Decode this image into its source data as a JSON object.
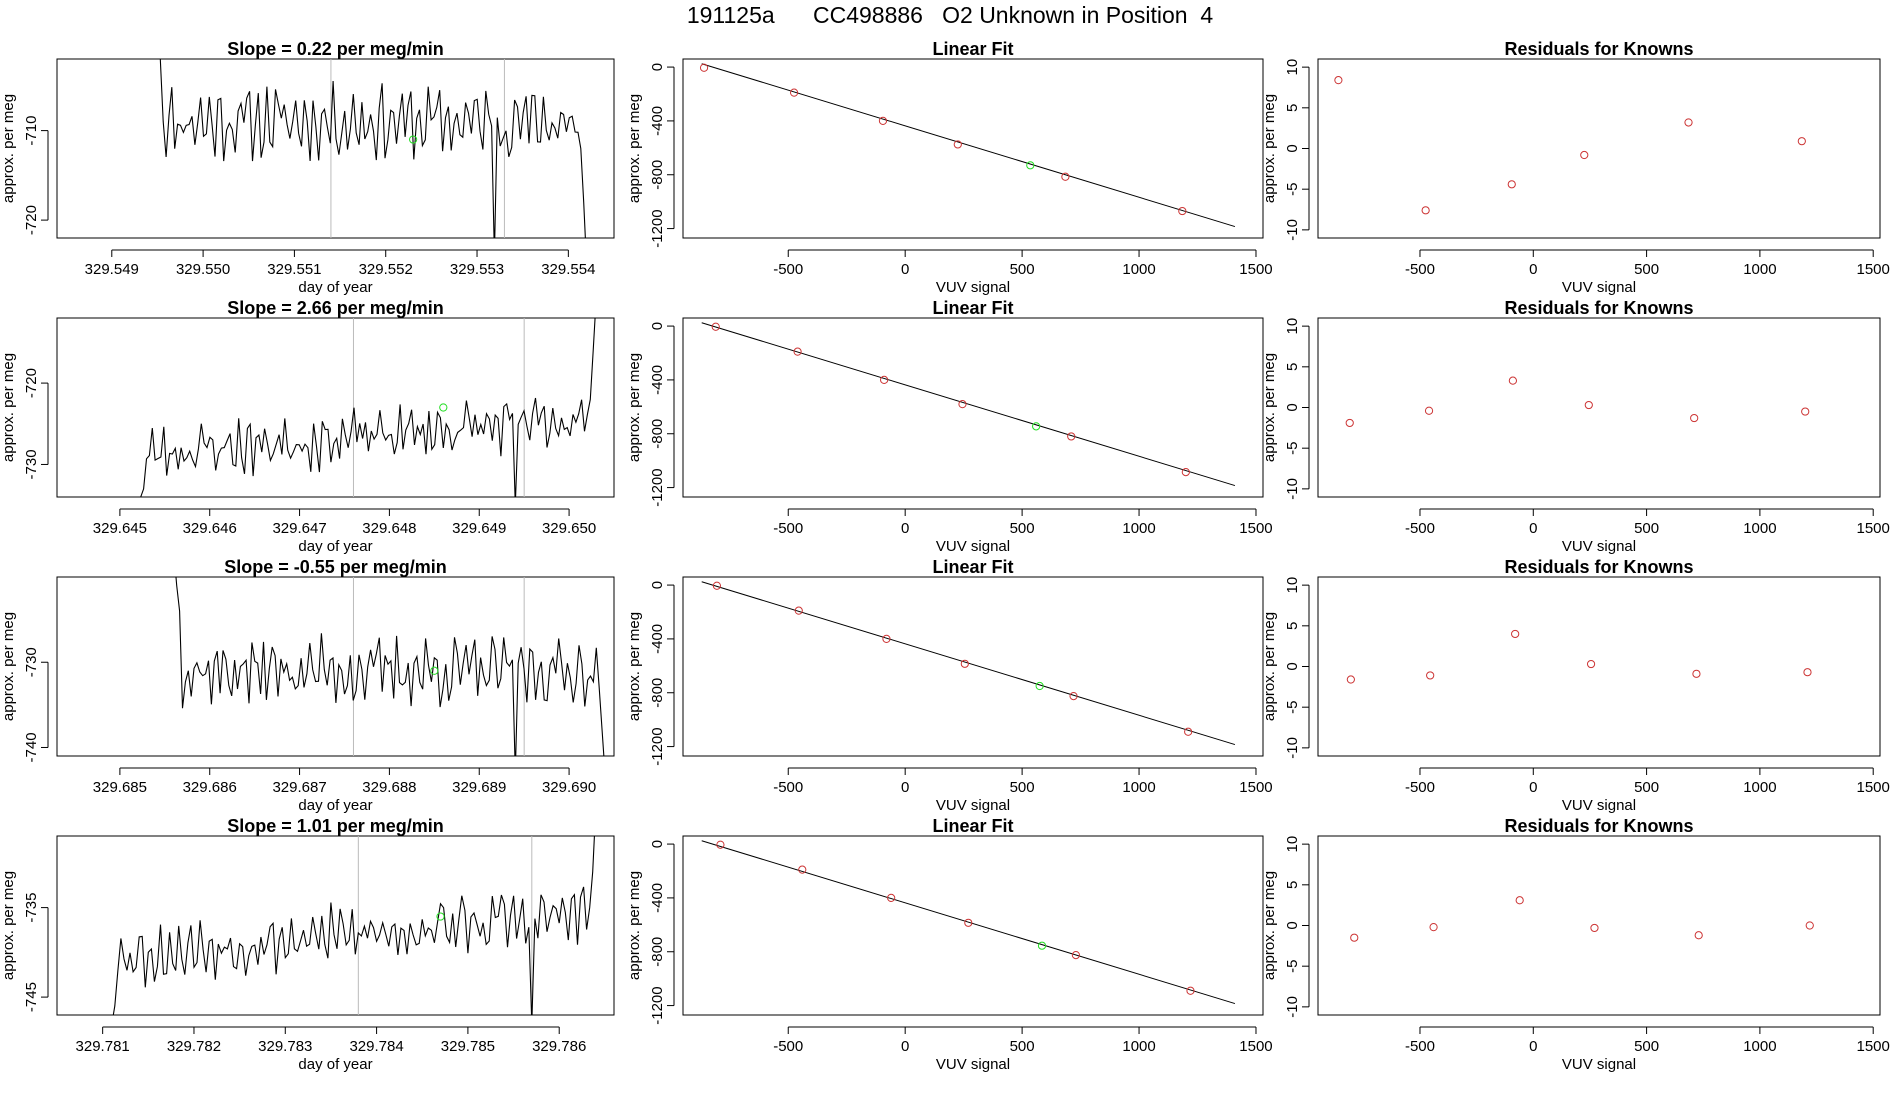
{
  "figure_title": "191125a      CC498886   O2 Unknown in Position  4",
  "colors": {
    "known_point": "#cc3333",
    "unknown_point": "#22dd22",
    "line": "#000000",
    "marker_line": "#bbbbbb"
  },
  "chart_data": [
    {
      "type": "line",
      "row": 1,
      "panel": "time-series",
      "title": "Slope =  0.22  per meg/min",
      "xlabel": "day of year",
      "ylabel": "approx. per meg",
      "xlim": [
        329.5484,
        329.5545
      ],
      "ylim": [
        -722,
        -702
      ],
      "xticks": [
        329.549,
        329.55,
        329.551,
        329.552,
        329.553,
        329.554
      ],
      "xtick_labels": [
        "329.549",
        "329.550",
        "329.551",
        "329.552",
        "329.553",
        "329.554"
      ],
      "yticks": [
        -720,
        -710
      ],
      "vlines": [
        329.5514,
        329.5533
      ],
      "unknown_point": {
        "x": 329.5523,
        "y": -711
      },
      "series_start": 329.5495,
      "series_end": 329.5542,
      "series_n": 150,
      "series_base": -709.0,
      "series_amp": 3.6,
      "series_seed": 11,
      "series_head": [
        -697,
        -702,
        -709
      ],
      "series_tail": [
        -712,
        -718,
        -725
      ],
      "drops": [
        [
          329.5532,
          -724
        ]
      ]
    },
    {
      "type": "scatter",
      "row": 1,
      "panel": "linear-fit",
      "title": "Linear Fit",
      "xlabel": "VUV signal",
      "ylabel": "approx. per meg",
      "xlim": [
        -950,
        1530
      ],
      "ylim": [
        -1270,
        60
      ],
      "xticks": [
        -500,
        0,
        500,
        1000,
        1500
      ],
      "xtick_labels": [
        "-500",
        "0",
        "500",
        "1000",
        "1500"
      ],
      "yticks": [
        0,
        -400,
        -800,
        -1200
      ],
      "ytick_labels": [
        "0",
        "-400",
        "-800",
        "-1200"
      ],
      "fit_line": {
        "x": [
          -870,
          1410
        ],
        "y": [
          25,
          -1185
        ]
      },
      "knowns": [
        {
          "x": -860,
          "y": -5
        },
        {
          "x": -475,
          "y": -190
        },
        {
          "x": -95,
          "y": -400
        },
        {
          "x": 225,
          "y": -575
        },
        {
          "x": 685,
          "y": -815
        },
        {
          "x": 1185,
          "y": -1070
        }
      ],
      "unknown": {
        "x": 535,
        "y": -730
      }
    },
    {
      "type": "scatter",
      "row": 1,
      "panel": "residuals",
      "title": "Residuals for Knowns",
      "xlabel": "VUV signal",
      "ylabel": "approx. per meg",
      "xlim": [
        -950,
        1530
      ],
      "ylim": [
        -11,
        11
      ],
      "xticks": [
        -500,
        0,
        500,
        1000,
        1500
      ],
      "xtick_labels": [
        "-500",
        "0",
        "500",
        "1000",
        "1500"
      ],
      "yticks": [
        10,
        5,
        0,
        -5,
        -10
      ],
      "ytick_labels": [
        "10",
        "5",
        "0",
        "-5",
        "-10"
      ],
      "points": [
        {
          "x": -860,
          "y": 8.4
        },
        {
          "x": -475,
          "y": -7.6
        },
        {
          "x": -95,
          "y": -4.4
        },
        {
          "x": 225,
          "y": -0.8
        },
        {
          "x": 685,
          "y": 3.2
        },
        {
          "x": 1185,
          "y": 0.9
        }
      ]
    },
    {
      "type": "line",
      "row": 2,
      "panel": "time-series",
      "title": "Slope =  2.66  per meg/min",
      "xlabel": "day of year",
      "ylabel": "approx. per meg",
      "xlim": [
        329.6443,
        329.6505
      ],
      "ylim": [
        -734,
        -712
      ],
      "xticks": [
        329.645,
        329.646,
        329.647,
        329.648,
        329.649,
        329.65
      ],
      "xtick_labels": [
        "329.645",
        "329.646",
        "329.647",
        "329.648",
        "329.649",
        "329.650"
      ],
      "yticks": [
        -730,
        -720
      ],
      "vlines": [
        329.6476,
        329.6495
      ],
      "unknown_point": {
        "x": 329.6486,
        "y": -723
      },
      "series_start": 329.6452,
      "series_end": 329.6503,
      "series_n": 160,
      "series_base": -726.5,
      "series_amp": 3.2,
      "series_trend": 4.5,
      "series_seed": 23,
      "series_head": [
        -734,
        -734,
        -733
      ],
      "series_tail": [
        -722,
        -716,
        -710
      ],
      "drops": [
        [
          329.6494,
          -735
        ]
      ]
    },
    {
      "type": "scatter",
      "row": 2,
      "panel": "linear-fit",
      "title": "Linear Fit",
      "xlabel": "VUV signal",
      "ylabel": "approx. per meg",
      "xlim": [
        -950,
        1530
      ],
      "ylim": [
        -1270,
        60
      ],
      "xticks": [
        -500,
        0,
        500,
        1000,
        1500
      ],
      "xtick_labels": [
        "-500",
        "0",
        "500",
        "1000",
        "1500"
      ],
      "yticks": [
        0,
        -400,
        -800,
        -1200
      ],
      "ytick_labels": [
        "0",
        "-400",
        "-800",
        "-1200"
      ],
      "fit_line": {
        "x": [
          -870,
          1410
        ],
        "y": [
          25,
          -1185
        ]
      },
      "knowns": [
        {
          "x": -810,
          "y": -5
        },
        {
          "x": -460,
          "y": -190
        },
        {
          "x": -90,
          "y": -400
        },
        {
          "x": 245,
          "y": -580
        },
        {
          "x": 710,
          "y": -820
        },
        {
          "x": 1200,
          "y": -1085
        }
      ],
      "unknown": {
        "x": 560,
        "y": -745
      }
    },
    {
      "type": "scatter",
      "row": 2,
      "panel": "residuals",
      "title": "Residuals for Knowns",
      "xlabel": "VUV signal",
      "ylabel": "approx. per meg",
      "xlim": [
        -950,
        1530
      ],
      "ylim": [
        -11,
        11
      ],
      "xticks": [
        -500,
        0,
        500,
        1000,
        1500
      ],
      "xtick_labels": [
        "-500",
        "0",
        "500",
        "1000",
        "1500"
      ],
      "yticks": [
        10,
        5,
        0,
        -5,
        -10
      ],
      "ytick_labels": [
        "10",
        "5",
        "0",
        "-5",
        "-10"
      ],
      "points": [
        {
          "x": -810,
          "y": -1.9
        },
        {
          "x": -460,
          "y": -0.4
        },
        {
          "x": -90,
          "y": 3.3
        },
        {
          "x": 245,
          "y": 0.3
        },
        {
          "x": 710,
          "y": -1.3
        },
        {
          "x": 1200,
          "y": -0.5
        }
      ]
    },
    {
      "type": "line",
      "row": 3,
      "panel": "time-series",
      "title": "Slope =  -0.55  per meg/min",
      "xlabel": "day of year",
      "ylabel": "approx. per meg",
      "xlim": [
        329.6843,
        329.6905
      ],
      "ylim": [
        -741,
        -720
      ],
      "xticks": [
        329.685,
        329.686,
        329.687,
        329.688,
        329.689,
        329.69
      ],
      "xtick_labels": [
        "329.685",
        "329.686",
        "329.687",
        "329.688",
        "329.689",
        "329.690"
      ],
      "yticks": [
        -740,
        -730
      ],
      "vlines": [
        329.6876,
        329.6895
      ],
      "unknown_point": {
        "x": 329.6885,
        "y": -731
      },
      "series_start": 329.6856,
      "series_end": 329.6904,
      "series_n": 150,
      "series_base": -731.0,
      "series_amp": 3.6,
      "series_seed": 37,
      "series_head": [
        -717,
        -721,
        -724
      ],
      "series_tail": [
        -733,
        -738,
        -743
      ],
      "drops": [
        [
          329.6894,
          -743
        ]
      ]
    },
    {
      "type": "scatter",
      "row": 3,
      "panel": "linear-fit",
      "title": "Linear Fit",
      "xlabel": "VUV signal",
      "ylabel": "approx. per meg",
      "xlim": [
        -950,
        1530
      ],
      "ylim": [
        -1270,
        60
      ],
      "xticks": [
        -500,
        0,
        500,
        1000,
        1500
      ],
      "xtick_labels": [
        "-500",
        "0",
        "500",
        "1000",
        "1500"
      ],
      "yticks": [
        0,
        -400,
        -800,
        -1200
      ],
      "ytick_labels": [
        "0",
        "-400",
        "-800",
        "-1200"
      ],
      "fit_line": {
        "x": [
          -870,
          1410
        ],
        "y": [
          25,
          -1185
        ]
      },
      "knowns": [
        {
          "x": -805,
          "y": -5
        },
        {
          "x": -455,
          "y": -190
        },
        {
          "x": -80,
          "y": -400
        },
        {
          "x": 255,
          "y": -585
        },
        {
          "x": 720,
          "y": -825
        },
        {
          "x": 1210,
          "y": -1090
        }
      ],
      "unknown": {
        "x": 575,
        "y": -750
      }
    },
    {
      "type": "scatter",
      "row": 3,
      "panel": "residuals",
      "title": "Residuals for Knowns",
      "xlabel": "VUV signal",
      "ylabel": "approx. per meg",
      "xlim": [
        -950,
        1530
      ],
      "ylim": [
        -11,
        11
      ],
      "xticks": [
        -500,
        0,
        500,
        1000,
        1500
      ],
      "xtick_labels": [
        "-500",
        "0",
        "500",
        "1000",
        "1500"
      ],
      "yticks": [
        10,
        5,
        0,
        -5,
        -10
      ],
      "ytick_labels": [
        "10",
        "5",
        "0",
        "-5",
        "-10"
      ],
      "points": [
        {
          "x": -805,
          "y": -1.6
        },
        {
          "x": -455,
          "y": -1.1
        },
        {
          "x": -80,
          "y": 4.0
        },
        {
          "x": 255,
          "y": 0.3
        },
        {
          "x": 720,
          "y": -0.9
        },
        {
          "x": 1210,
          "y": -0.7
        }
      ]
    },
    {
      "type": "line",
      "row": 4,
      "panel": "time-series",
      "title": "Slope =  1.01  per meg/min",
      "xlabel": "day of year",
      "ylabel": "approx. per meg",
      "xlim": [
        329.7805,
        329.7866
      ],
      "ylim": [
        -747,
        -727
      ],
      "xticks": [
        329.781,
        329.782,
        329.783,
        329.784,
        329.785,
        329.786
      ],
      "xtick_labels": [
        "329.781",
        "329.782",
        "329.783",
        "329.784",
        "329.785",
        "329.786"
      ],
      "yticks": [
        -745,
        -735
      ],
      "vlines": [
        329.7838,
        329.7857
      ],
      "unknown_point": {
        "x": 329.7847,
        "y": -736
      },
      "series_start": 329.7811,
      "series_end": 329.7864,
      "series_n": 160,
      "series_base": -738.0,
      "series_amp": 3.0,
      "series_trend": 5.0,
      "series_seed": 53,
      "series_head": [
        -748,
        -746,
        -742
      ],
      "series_tail": [
        -735,
        -731,
        -724
      ],
      "drops": [
        [
          329.7857,
          -748
        ]
      ]
    },
    {
      "type": "scatter",
      "row": 4,
      "panel": "linear-fit",
      "title": "Linear Fit",
      "xlabel": "VUV signal",
      "ylabel": "approx. per meg",
      "xlim": [
        -950,
        1530
      ],
      "ylim": [
        -1270,
        60
      ],
      "xticks": [
        -500,
        0,
        500,
        1000,
        1500
      ],
      "xtick_labels": [
        "-500",
        "0",
        "500",
        "1000",
        "1500"
      ],
      "yticks": [
        0,
        -400,
        -800,
        -1200
      ],
      "ytick_labels": [
        "0",
        "-400",
        "-800",
        "-1200"
      ],
      "fit_line": {
        "x": [
          -870,
          1410
        ],
        "y": [
          25,
          -1185
        ]
      },
      "knowns": [
        {
          "x": -790,
          "y": -5
        },
        {
          "x": -440,
          "y": -190
        },
        {
          "x": -60,
          "y": -400
        },
        {
          "x": 270,
          "y": -585
        },
        {
          "x": 730,
          "y": -825
        },
        {
          "x": 1220,
          "y": -1090
        }
      ],
      "unknown": {
        "x": 585,
        "y": -755
      }
    },
    {
      "type": "scatter",
      "row": 4,
      "panel": "residuals",
      "title": "Residuals for Knowns",
      "xlabel": "VUV signal",
      "ylabel": "approx. per meg",
      "xlim": [
        -950,
        1530
      ],
      "ylim": [
        -11,
        11
      ],
      "xticks": [
        -500,
        0,
        500,
        1000,
        1500
      ],
      "xtick_labels": [
        "-500",
        "0",
        "500",
        "1000",
        "1500"
      ],
      "yticks": [
        10,
        5,
        0,
        -5,
        -10
      ],
      "ytick_labels": [
        "10",
        "5",
        "0",
        "-5",
        "-10"
      ],
      "points": [
        {
          "x": -790,
          "y": -1.5
        },
        {
          "x": -440,
          "y": -0.2
        },
        {
          "x": -60,
          "y": 3.1
        },
        {
          "x": 270,
          "y": -0.3
        },
        {
          "x": 730,
          "y": -1.2
        },
        {
          "x": 1220,
          "y": 0.0
        }
      ]
    }
  ]
}
